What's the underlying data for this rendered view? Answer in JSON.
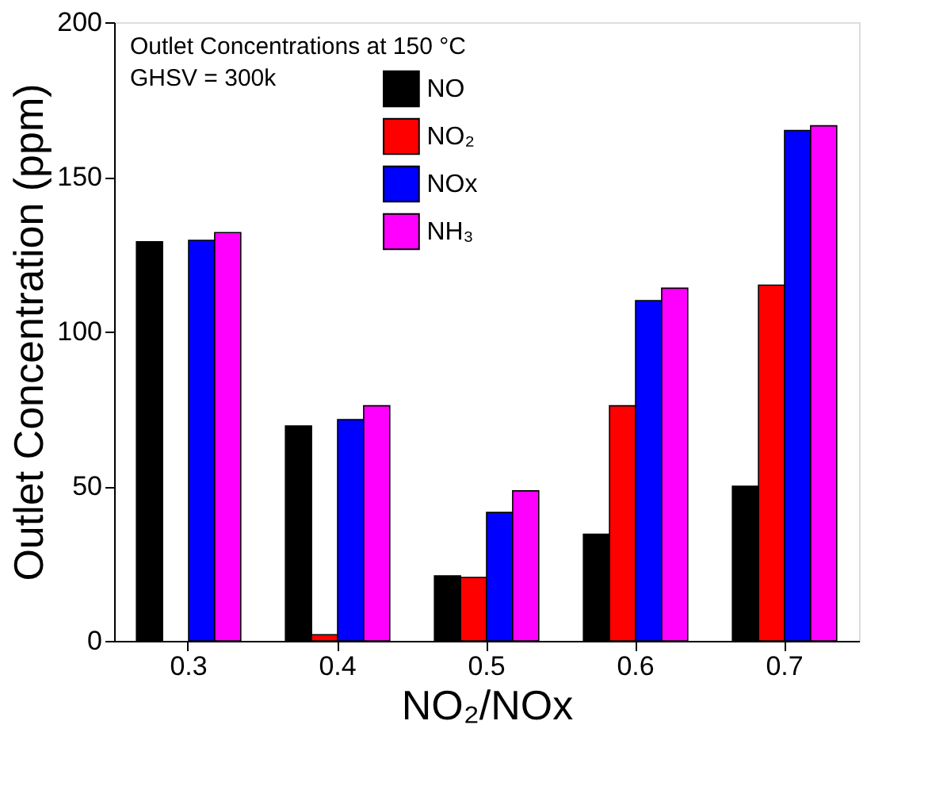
{
  "chart_data": {
    "type": "bar",
    "xlabel": "NO₂/NOx",
    "ylabel": "Outlet Concentration (ppm)",
    "categories": [
      "0.3",
      "0.4",
      "0.5",
      "0.6",
      "0.7"
    ],
    "series": [
      {
        "name": "NO",
        "color": "#000000",
        "values": [
          129,
          69.5,
          21,
          34.5,
          50
        ]
      },
      {
        "name": "NO₂",
        "color": "#ff0000",
        "values": [
          null,
          2,
          20.5,
          76,
          115
        ]
      },
      {
        "name": "NOx",
        "color": "#0000ff",
        "values": [
          129.5,
          71.5,
          41.5,
          110,
          165
        ]
      },
      {
        "name": "NH₃",
        "color": "#ff00ff",
        "values": [
          132,
          76,
          48.5,
          114,
          166.5
        ]
      }
    ],
    "annotations": [
      "Outlet Concentrations at 150 °C",
      "GHSV = 300k"
    ],
    "ylim": [
      0,
      200
    ],
    "yticks": [
      0,
      50,
      100,
      150,
      200
    ],
    "legend": "top",
    "grid": false
  }
}
